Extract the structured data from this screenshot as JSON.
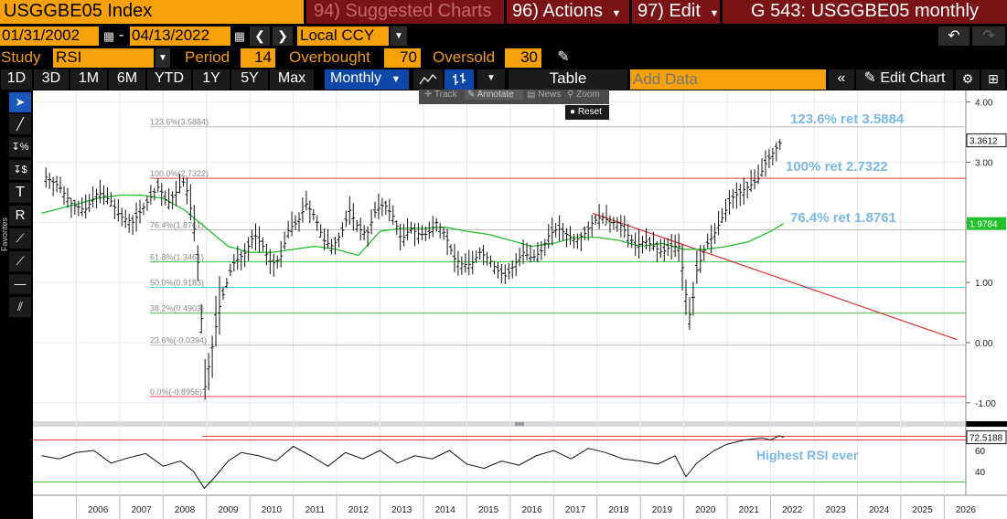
{
  "header": {
    "ticker": "USGGBE05 Index",
    "suggested": "94) Suggested Charts",
    "actions": "96) Actions",
    "edit": "97) Edit",
    "chart_title": "G 543: USGGBE05 monthly"
  },
  "range": {
    "start": "01/31/2002",
    "dash": "-",
    "end": "04/13/2022",
    "currency": "Local CCY"
  },
  "study": {
    "label": "Study",
    "value": "RSI",
    "period_label": "Period",
    "period": "14",
    "overbought_label": "Overbought",
    "overbought": "70",
    "oversold_label": "Oversold",
    "oversold": "30"
  },
  "timeframes": [
    "1D",
    "3D",
    "1M",
    "6M",
    "YTD",
    "1Y",
    "5Y",
    "Max"
  ],
  "toolbar": {
    "period_select": "Monthly",
    "table": "Table",
    "add_data_placeholder": "Add Data",
    "edit_chart": "Edit Chart"
  },
  "chart_menu": {
    "track": "Track",
    "annotate": "Annotate",
    "news": "News",
    "zoom": "Zoom",
    "reset": "Reset"
  },
  "sidebar": {
    "favorites": "Favorites"
  },
  "annotations": {
    "ret1236": "123.6% ret 3.5884",
    "ret100": "100% ret 2.7322",
    "ret764": "76.4% ret 1.8761",
    "rsi_note": "Highest RSI ever"
  },
  "colors": {
    "orange": "#f7a10a",
    "dark_red": "#7a1216",
    "annotation_blue": "#7ab8e8",
    "ma_green": "#22c02a",
    "trend_red": "#e0312b"
  },
  "chart_data": {
    "type": "line",
    "x_ticks": [
      "2006",
      "2007",
      "2008",
      "2009",
      "2010",
      "2011",
      "2012",
      "2013",
      "2014",
      "2015",
      "2016",
      "2017",
      "2018",
      "2019",
      "2020",
      "2021",
      "2022",
      "2023",
      "2024",
      "2025",
      "2026"
    ],
    "y_ticks": [
      "4.00",
      "3.00",
      "2.00",
      "1.00",
      "0.00",
      "-1.00"
    ],
    "ylim": [
      -1.2,
      4.1
    ],
    "last_price": "3.3612",
    "ma_last": "1.9784",
    "fib_levels": [
      {
        "label": "123.6%(3.5884)",
        "value": 3.5884
      },
      {
        "label": "100.0%(2.7322)",
        "value": 2.7322
      },
      {
        "label": "76.4%(1.8761)",
        "value": 1.8761
      },
      {
        "label": "61.8%(1.3461)",
        "value": 1.3461
      },
      {
        "label": "50.0%(0.9183)",
        "value": 0.9183
      },
      {
        "label": "38.2%(0.4903)",
        "value": 0.4903
      },
      {
        "label": "23.6%(-0.0394)",
        "value": -0.0394
      },
      {
        "label": "0.0%(-0.8956)",
        "value": -0.8956
      }
    ],
    "price": {
      "x": [
        2005.3,
        2005.6,
        2005.9,
        2006.2,
        2006.5,
        2006.8,
        2007.0,
        2007.3,
        2007.6,
        2007.9,
        2008.1,
        2008.3,
        2008.5,
        2008.7,
        2008.85,
        2008.95,
        2009.1,
        2009.3,
        2009.6,
        2009.9,
        2010.1,
        2010.3,
        2010.5,
        2010.7,
        2010.9,
        2011.1,
        2011.3,
        2011.5,
        2011.7,
        2011.9,
        2012.1,
        2012.3,
        2012.5,
        2012.7,
        2012.9,
        2013.1,
        2013.3,
        2013.5,
        2013.7,
        2013.9,
        2014.1,
        2014.3,
        2014.5,
        2014.7,
        2014.9,
        2015.1,
        2015.3,
        2015.5,
        2015.7,
        2015.9,
        2016.1,
        2016.3,
        2016.5,
        2016.7,
        2016.9,
        2017.1,
        2017.3,
        2017.5,
        2017.7,
        2017.9,
        2018.1,
        2018.3,
        2018.5,
        2018.7,
        2018.9,
        2019.1,
        2019.3,
        2019.5,
        2019.7,
        2019.9,
        2020.05,
        2020.15,
        2020.3,
        2020.5,
        2020.7,
        2020.9,
        2021.1,
        2021.3,
        2021.5,
        2021.7,
        2021.9,
        2022.1,
        2022.2,
        2022.28
      ],
      "y": [
        2.75,
        2.6,
        2.3,
        2.2,
        2.5,
        2.35,
        2.1,
        2.0,
        2.3,
        2.6,
        2.3,
        2.5,
        2.7,
        2.0,
        1.0,
        -0.8,
        -0.2,
        0.6,
        1.3,
        1.5,
        1.8,
        1.6,
        1.3,
        1.4,
        1.9,
        2.0,
        2.3,
        2.1,
        1.7,
        1.6,
        1.8,
        2.2,
        1.9,
        1.8,
        2.2,
        2.3,
        2.1,
        1.7,
        1.9,
        1.8,
        1.8,
        2.0,
        1.8,
        1.4,
        1.3,
        1.3,
        1.5,
        1.4,
        1.2,
        1.1,
        1.3,
        1.5,
        1.4,
        1.5,
        1.8,
        1.9,
        1.8,
        1.7,
        1.8,
        2.0,
        2.1,
        2.0,
        2.0,
        1.8,
        1.6,
        1.7,
        1.6,
        1.5,
        1.6,
        1.6,
        0.8,
        0.4,
        1.2,
        1.6,
        1.8,
        2.1,
        2.4,
        2.5,
        2.6,
        2.7,
        3.0,
        3.2,
        3.3,
        3.36
      ]
    },
    "moving_average": {
      "x": [
        2005.2,
        2006.0,
        2006.5,
        2007.0,
        2007.5,
        2008.0,
        2008.5,
        2009.0,
        2009.5,
        2010.0,
        2010.5,
        2011.0,
        2011.5,
        2012.0,
        2012.5,
        2013.0,
        2013.5,
        2014.0,
        2014.5,
        2015.0,
        2015.5,
        2016.0,
        2016.5,
        2017.0,
        2017.5,
        2018.0,
        2018.5,
        2019.0,
        2019.5,
        2020.0,
        2020.5,
        2021.0,
        2021.5,
        2022.0,
        2022.3
      ],
      "y": [
        2.15,
        2.3,
        2.4,
        2.45,
        2.45,
        2.4,
        2.2,
        1.9,
        1.6,
        1.5,
        1.5,
        1.55,
        1.6,
        1.55,
        1.45,
        1.85,
        1.9,
        1.9,
        1.92,
        1.85,
        1.8,
        1.7,
        1.6,
        1.65,
        1.75,
        1.75,
        1.7,
        1.6,
        1.65,
        1.55,
        1.55,
        1.6,
        1.68,
        1.85,
        1.9784
      ]
    },
    "trendline": {
      "x": [
        2017.9,
        2026.3
      ],
      "y": [
        2.15,
        0.05
      ]
    },
    "rsi": {
      "ylim": [
        20,
        80
      ],
      "y_ticks": [
        "60",
        "40"
      ],
      "last_value": "72.5188",
      "overbought": 70,
      "oversold": 30,
      "x": [
        2005.2,
        2005.6,
        2006.0,
        2006.4,
        2006.8,
        2007.2,
        2007.6,
        2008.0,
        2008.4,
        2008.7,
        2008.95,
        2009.2,
        2009.5,
        2009.8,
        2010.2,
        2010.6,
        2011.0,
        2011.4,
        2011.8,
        2012.2,
        2012.6,
        2013.0,
        2013.4,
        2013.8,
        2014.2,
        2014.6,
        2015.0,
        2015.4,
        2015.8,
        2016.2,
        2016.6,
        2017.0,
        2017.4,
        2017.8,
        2018.2,
        2018.6,
        2019.0,
        2019.4,
        2019.8,
        2020.05,
        2020.3,
        2020.7,
        2021.0,
        2021.4,
        2021.8,
        2022.0,
        2022.2,
        2022.3
      ],
      "y": [
        55,
        52,
        58,
        60,
        48,
        53,
        57,
        45,
        50,
        40,
        24,
        35,
        50,
        58,
        55,
        50,
        64,
        55,
        45,
        58,
        52,
        60,
        48,
        55,
        52,
        60,
        47,
        43,
        50,
        46,
        55,
        60,
        52,
        62,
        58,
        52,
        50,
        47,
        55,
        35,
        48,
        60,
        66,
        70,
        72,
        70,
        74,
        72.5
      ]
    }
  }
}
